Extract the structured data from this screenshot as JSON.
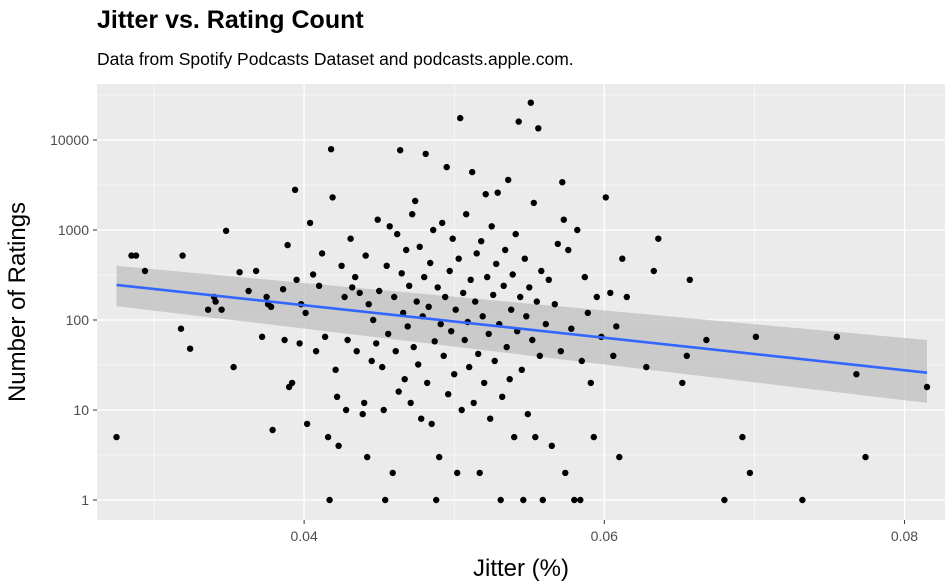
{
  "colors": {
    "panel_bg": "#ebebeb",
    "grid_major": "#ffffff",
    "points": "#000000",
    "trend_line": "#3366ff",
    "confidence_band": "#bfbfbf"
  },
  "chart_data": {
    "type": "scatter",
    "title": "Jitter vs. Rating Count",
    "subtitle": "Data from Spotify Podcasts Dataset and podcasts.apple.com.",
    "xlabel": "Jitter (%)",
    "ylabel": "Number of Ratings",
    "x_ticks": [
      "0.04",
      "0.06",
      "0.08"
    ],
    "x_tick_values": [
      0.04,
      0.06,
      0.08
    ],
    "y_ticks": [
      "1",
      "10",
      "100",
      "1000",
      "10000"
    ],
    "y_tick_values": [
      1,
      10,
      100,
      1000,
      10000
    ],
    "y_scale": "log10",
    "xlim": [
      0.0262,
      0.0827
    ],
    "ylim": [
      0.58,
      38000
    ],
    "grid": true,
    "legend": "none",
    "trend": {
      "method": "linear fit with confidence band",
      "x": [
        0.0275,
        0.0815
      ],
      "y": [
        245,
        26
      ],
      "band_upper": [
        400,
        60
      ],
      "band_lower": [
        142,
        12
      ]
    },
    "points": [
      [
        0.0275,
        5
      ],
      [
        0.0285,
        520
      ],
      [
        0.0288,
        520
      ],
      [
        0.0294,
        350
      ],
      [
        0.0318,
        80
      ],
      [
        0.0319,
        520
      ],
      [
        0.0324,
        48
      ],
      [
        0.0336,
        130
      ],
      [
        0.034,
        180
      ],
      [
        0.0341,
        160
      ],
      [
        0.0345,
        130
      ],
      [
        0.0348,
        980
      ],
      [
        0.0353,
        30
      ],
      [
        0.0357,
        340
      ],
      [
        0.0363,
        210
      ],
      [
        0.0368,
        350
      ],
      [
        0.0372,
        65
      ],
      [
        0.0375,
        180
      ],
      [
        0.0376,
        150
      ],
      [
        0.0378,
        140
      ],
      [
        0.0379,
        6
      ],
      [
        0.0386,
        220
      ],
      [
        0.0387,
        60
      ],
      [
        0.039,
        18
      ],
      [
        0.0392,
        20
      ],
      [
        0.0389,
        680
      ],
      [
        0.0394,
        2800
      ],
      [
        0.0395,
        280
      ],
      [
        0.0397,
        55
      ],
      [
        0.0398,
        150
      ],
      [
        0.0401,
        120
      ],
      [
        0.0402,
        7
      ],
      [
        0.0404,
        1200
      ],
      [
        0.0406,
        320
      ],
      [
        0.0408,
        45
      ],
      [
        0.041,
        240
      ],
      [
        0.0412,
        550
      ],
      [
        0.0414,
        65
      ],
      [
        0.0416,
        5
      ],
      [
        0.0417,
        1
      ],
      [
        0.0418,
        7900
      ],
      [
        0.0419,
        2300
      ],
      [
        0.0421,
        28
      ],
      [
        0.0422,
        14
      ],
      [
        0.0423,
        4
      ],
      [
        0.0425,
        400
      ],
      [
        0.0427,
        180
      ],
      [
        0.0428,
        10
      ],
      [
        0.0429,
        60
      ],
      [
        0.0431,
        800
      ],
      [
        0.0432,
        230
      ],
      [
        0.0434,
        300
      ],
      [
        0.0435,
        45
      ],
      [
        0.0437,
        200
      ],
      [
        0.0439,
        9
      ],
      [
        0.044,
        12
      ],
      [
        0.0441,
        520
      ],
      [
        0.0442,
        3
      ],
      [
        0.0443,
        150
      ],
      [
        0.0445,
        35
      ],
      [
        0.0446,
        100
      ],
      [
        0.0448,
        55
      ],
      [
        0.0449,
        1300
      ],
      [
        0.045,
        210
      ],
      [
        0.0452,
        30
      ],
      [
        0.0453,
        10
      ],
      [
        0.0454,
        1
      ],
      [
        0.0455,
        400
      ],
      [
        0.0456,
        70
      ],
      [
        0.0457,
        1100
      ],
      [
        0.0459,
        2
      ],
      [
        0.046,
        180
      ],
      [
        0.0461,
        45
      ],
      [
        0.0462,
        900
      ],
      [
        0.0463,
        16
      ],
      [
        0.0464,
        7700
      ],
      [
        0.0465,
        330
      ],
      [
        0.0466,
        120
      ],
      [
        0.0467,
        22
      ],
      [
        0.0468,
        600
      ],
      [
        0.0469,
        85
      ],
      [
        0.047,
        240
      ],
      [
        0.0471,
        12
      ],
      [
        0.0472,
        1500
      ],
      [
        0.0473,
        50
      ],
      [
        0.0474,
        2100
      ],
      [
        0.0475,
        160
      ],
      [
        0.0476,
        32
      ],
      [
        0.0477,
        650
      ],
      [
        0.0478,
        8
      ],
      [
        0.0479,
        110
      ],
      [
        0.048,
        300
      ],
      [
        0.0481,
        7000
      ],
      [
        0.0482,
        20
      ],
      [
        0.0483,
        140
      ],
      [
        0.0484,
        430
      ],
      [
        0.0485,
        7
      ],
      [
        0.0486,
        1000
      ],
      [
        0.0487,
        58
      ],
      [
        0.0488,
        1
      ],
      [
        0.0489,
        230
      ],
      [
        0.049,
        3
      ],
      [
        0.0491,
        90
      ],
      [
        0.0492,
        1200
      ],
      [
        0.0493,
        40
      ],
      [
        0.0494,
        180
      ],
      [
        0.0495,
        5000
      ],
      [
        0.0496,
        15
      ],
      [
        0.0497,
        350
      ],
      [
        0.0498,
        75
      ],
      [
        0.0499,
        800
      ],
      [
        0.05,
        25
      ],
      [
        0.0501,
        130
      ],
      [
        0.0502,
        2
      ],
      [
        0.0503,
        480
      ],
      [
        0.0504,
        17500
      ],
      [
        0.0505,
        10
      ],
      [
        0.0506,
        200
      ],
      [
        0.0507,
        60
      ],
      [
        0.0508,
        1500
      ],
      [
        0.0509,
        95
      ],
      [
        0.051,
        30
      ],
      [
        0.0511,
        280
      ],
      [
        0.0512,
        4400
      ],
      [
        0.0513,
        12
      ],
      [
        0.0514,
        160
      ],
      [
        0.0515,
        550
      ],
      [
        0.0516,
        42
      ],
      [
        0.0517,
        2
      ],
      [
        0.0518,
        750
      ],
      [
        0.0519,
        110
      ],
      [
        0.052,
        20
      ],
      [
        0.0521,
        2500
      ],
      [
        0.0522,
        300
      ],
      [
        0.0523,
        70
      ],
      [
        0.0524,
        8
      ],
      [
        0.0525,
        1100
      ],
      [
        0.0526,
        190
      ],
      [
        0.0527,
        35
      ],
      [
        0.0528,
        420
      ],
      [
        0.0529,
        2600
      ],
      [
        0.053,
        90
      ],
      [
        0.0531,
        1
      ],
      [
        0.0532,
        14
      ],
      [
        0.0533,
        240
      ],
      [
        0.0534,
        600
      ],
      [
        0.0535,
        50
      ],
      [
        0.0536,
        3600
      ],
      [
        0.0537,
        22
      ],
      [
        0.0538,
        130
      ],
      [
        0.0539,
        320
      ],
      [
        0.054,
        5
      ],
      [
        0.0541,
        900
      ],
      [
        0.0542,
        75
      ],
      [
        0.0543,
        16000
      ],
      [
        0.0544,
        180
      ],
      [
        0.0545,
        28
      ],
      [
        0.0546,
        1
      ],
      [
        0.0547,
        480
      ],
      [
        0.0548,
        110
      ],
      [
        0.0549,
        9
      ],
      [
        0.055,
        230
      ],
      [
        0.0551,
        26000
      ],
      [
        0.0552,
        60
      ],
      [
        0.0553,
        2000
      ],
      [
        0.0554,
        5
      ],
      [
        0.0555,
        160
      ],
      [
        0.0556,
        13500
      ],
      [
        0.0557,
        40
      ],
      [
        0.0558,
        350
      ],
      [
        0.0559,
        1
      ],
      [
        0.0561,
        90
      ],
      [
        0.0563,
        280
      ],
      [
        0.0565,
        4
      ],
      [
        0.0567,
        150
      ],
      [
        0.0569,
        700
      ],
      [
        0.0571,
        45
      ],
      [
        0.0572,
        3400
      ],
      [
        0.0573,
        1300
      ],
      [
        0.0574,
        2
      ],
      [
        0.0576,
        600
      ],
      [
        0.0578,
        80
      ],
      [
        0.058,
        1
      ],
      [
        0.0582,
        1000
      ],
      [
        0.0584,
        1
      ],
      [
        0.0585,
        35
      ],
      [
        0.0587,
        300
      ],
      [
        0.0589,
        120
      ],
      [
        0.0591,
        20
      ],
      [
        0.0593,
        5
      ],
      [
        0.0595,
        180
      ],
      [
        0.0598,
        65
      ],
      [
        0.0601,
        2300
      ],
      [
        0.0604,
        200
      ],
      [
        0.0606,
        40
      ],
      [
        0.0608,
        85
      ],
      [
        0.061,
        3
      ],
      [
        0.0612,
        480
      ],
      [
        0.0615,
        180
      ],
      [
        0.0628,
        30
      ],
      [
        0.0633,
        350
      ],
      [
        0.0636,
        800
      ],
      [
        0.0652,
        20
      ],
      [
        0.0655,
        40
      ],
      [
        0.0657,
        280
      ],
      [
        0.0668,
        60
      ],
      [
        0.068,
        1
      ],
      [
        0.0692,
        5
      ],
      [
        0.0697,
        2
      ],
      [
        0.0701,
        65
      ],
      [
        0.0732,
        1
      ],
      [
        0.0755,
        65
      ],
      [
        0.0768,
        25
      ],
      [
        0.0774,
        3
      ],
      [
        0.0815,
        18
      ]
    ]
  }
}
